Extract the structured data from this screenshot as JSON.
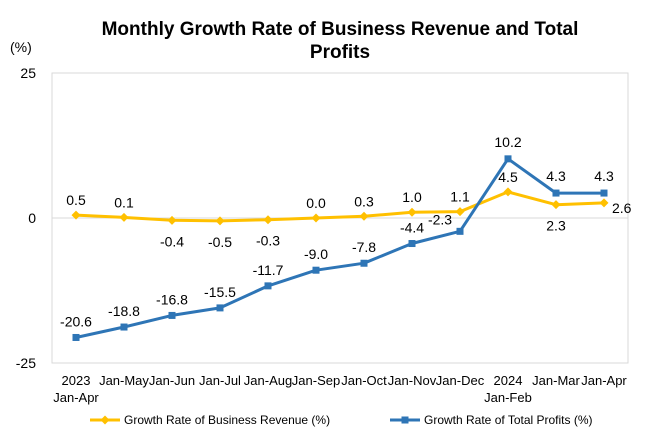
{
  "chart_data": {
    "type": "line",
    "title_lines": [
      "Monthly Growth Rate of Business Revenue and Total",
      "Profits"
    ],
    "ylabel": "(%)",
    "ylim": [
      -25,
      25
    ],
    "y_ticks": [
      {
        "value": 25,
        "label": "25"
      },
      {
        "value": 0,
        "label": "0"
      },
      {
        "value": -25,
        "label": "-25"
      }
    ],
    "x_labels": [
      [
        "2023",
        "Jan-Apr"
      ],
      [
        "Jan-May"
      ],
      [
        "Jan-Jun"
      ],
      [
        "Jan-Jul"
      ],
      [
        "Jan-Aug"
      ],
      [
        "Jan-Sep"
      ],
      [
        "Jan-Oct"
      ],
      [
        "Jan-Nov"
      ],
      [
        "Jan-Dec"
      ],
      [
        "2024",
        "Jan-Feb"
      ],
      [
        "Jan-Mar"
      ],
      [
        "Jan-Apr"
      ]
    ],
    "grid": false,
    "legend_position": "bottom",
    "series": [
      {
        "name": "Growth Rate of Business Revenue (%)",
        "color": "#FFC000",
        "marker": "diamond",
        "values": [
          0.5,
          0.1,
          -0.4,
          -0.5,
          -0.3,
          0.0,
          0.3,
          1.0,
          1.1,
          4.5,
          2.3,
          2.6
        ],
        "labels": [
          "0.5",
          "0.1",
          "-0.4",
          "-0.5",
          "-0.3",
          "0.0",
          "0.3",
          "1.0",
          "1.1",
          "4.5",
          "2.3",
          "2.6"
        ]
      },
      {
        "name": "Growth Rate of Total Profits (%)",
        "color": "#2E75B6",
        "marker": "square",
        "values": [
          -20.6,
          -18.8,
          -16.8,
          -15.5,
          -11.7,
          -9.0,
          -7.8,
          -4.4,
          -2.3,
          10.2,
          4.3,
          4.3
        ],
        "labels": [
          "-20.6",
          "-18.8",
          "-16.8",
          "-15.5",
          "-11.7",
          "-9.0",
          "-7.8",
          "-4.4",
          "-2.3",
          "10.2",
          "4.3",
          "4.3"
        ]
      }
    ]
  }
}
